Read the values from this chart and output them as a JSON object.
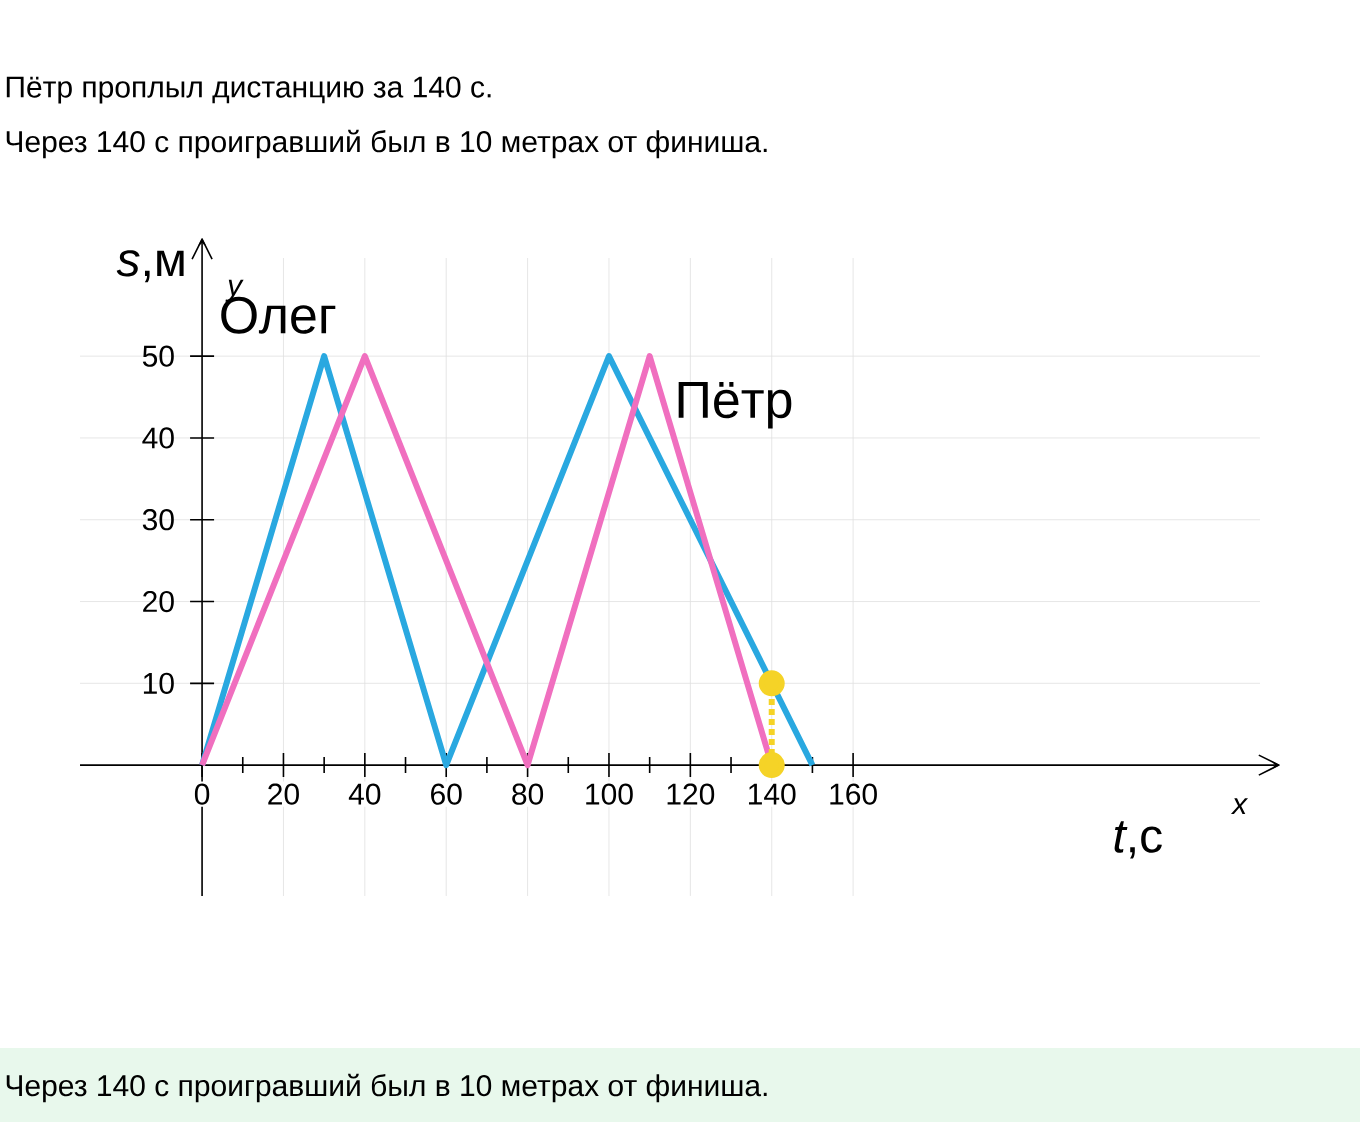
{
  "chart_data": {
    "type": "line",
    "title": "Пётр проплыл дистанцию за 140 с.",
    "subtitle": "Через 140 с проигравший был в 10 метрах от финиша.",
    "xlabel": "*t*,с",
    "ylabel": "*s*,м",
    "annotations": [
      "x",
      "y",
      "Через 140 с проигравший был в 10 метрах от финиша."
    ],
    "xlim": [
      -30,
      260
    ],
    "ylim": [
      -16,
      62
    ],
    "xticks": [
      0,
      20,
      40,
      60,
      80,
      100,
      120,
      140,
      160
    ],
    "yticks": [
      10,
      20,
      30,
      40,
      50
    ],
    "grid": true,
    "marker": "none",
    "line_style": "solid",
    "series": [
      {
        "name": "Олег",
        "color": "#29a8e0",
        "x": [
          0,
          30,
          60,
          100,
          150
        ],
        "values": [
          0,
          50,
          0,
          50,
          0
        ]
      },
      {
        "name": "Пётр",
        "color": "#f06fbf",
        "x": [
          0,
          40,
          80,
          110,
          140
        ],
        "values": [
          0,
          50,
          0,
          50,
          0
        ]
      },
      {
        "color": "#f5d327",
        "x": [
          140,
          140
        ],
        "values": [
          0,
          10
        ],
        "marker": "circle",
        "line_style": "dotted"
      }
    ]
  }
}
